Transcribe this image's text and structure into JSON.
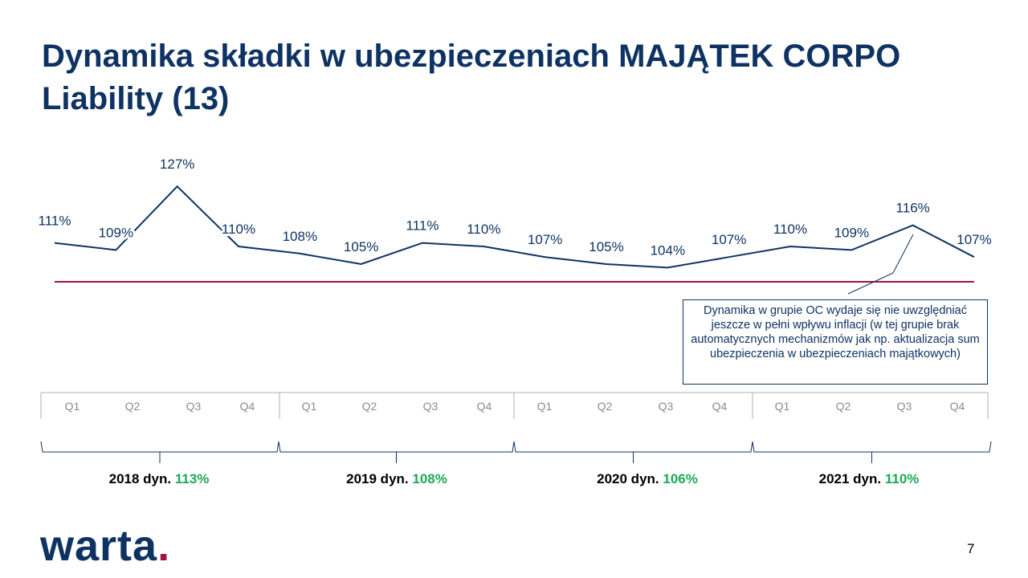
{
  "title": "Dynamika składki w ubezpieczeniach MAJĄTEK CORPO Liability (13)",
  "chart_data": {
    "type": "line",
    "series": [
      {
        "values": [
          111,
          109,
          127,
          110,
          108,
          105,
          111,
          110,
          107,
          105,
          104,
          107,
          110,
          109,
          116,
          107
        ],
        "labels": [
          "111%",
          "109%",
          "127%",
          "110%",
          "108%",
          "105%",
          "111%",
          "110%",
          "107%",
          "105%",
          "104%",
          "107%",
          "110%",
          "109%",
          "116%",
          "107%"
        ]
      }
    ],
    "categories": [
      "Q1",
      "Q2",
      "Q3",
      "Q4",
      "Q1",
      "Q2",
      "Q3",
      "Q4",
      "Q1",
      "Q2",
      "Q3",
      "Q4",
      "Q1",
      "Q2",
      "Q3",
      "Q4"
    ],
    "reference_line": 100,
    "ylim": [
      100,
      130
    ],
    "line_color": "#0e3363",
    "reference_color": "#a3143c",
    "years": [
      {
        "year_text": "2018 dyn.",
        "dyn": "113%"
      },
      {
        "year_text": "2019 dyn.",
        "dyn": "108%"
      },
      {
        "year_text": "2020 dyn.",
        "dyn": "106%"
      },
      {
        "year_text": "2021 dyn.",
        "dyn": "110%"
      }
    ]
  },
  "callout": "Dynamika w grupie OC wydaje się nie uwzględniać jeszcze w pełni wpływu inflacji (w tej grupie brak automatycznych mechanizmów jak np. aktualizacja sum ubezpieczenia w ubezpieczeniach majątkowych)",
  "logo": {
    "text": "warta",
    "dot": "."
  },
  "page_number": "7"
}
